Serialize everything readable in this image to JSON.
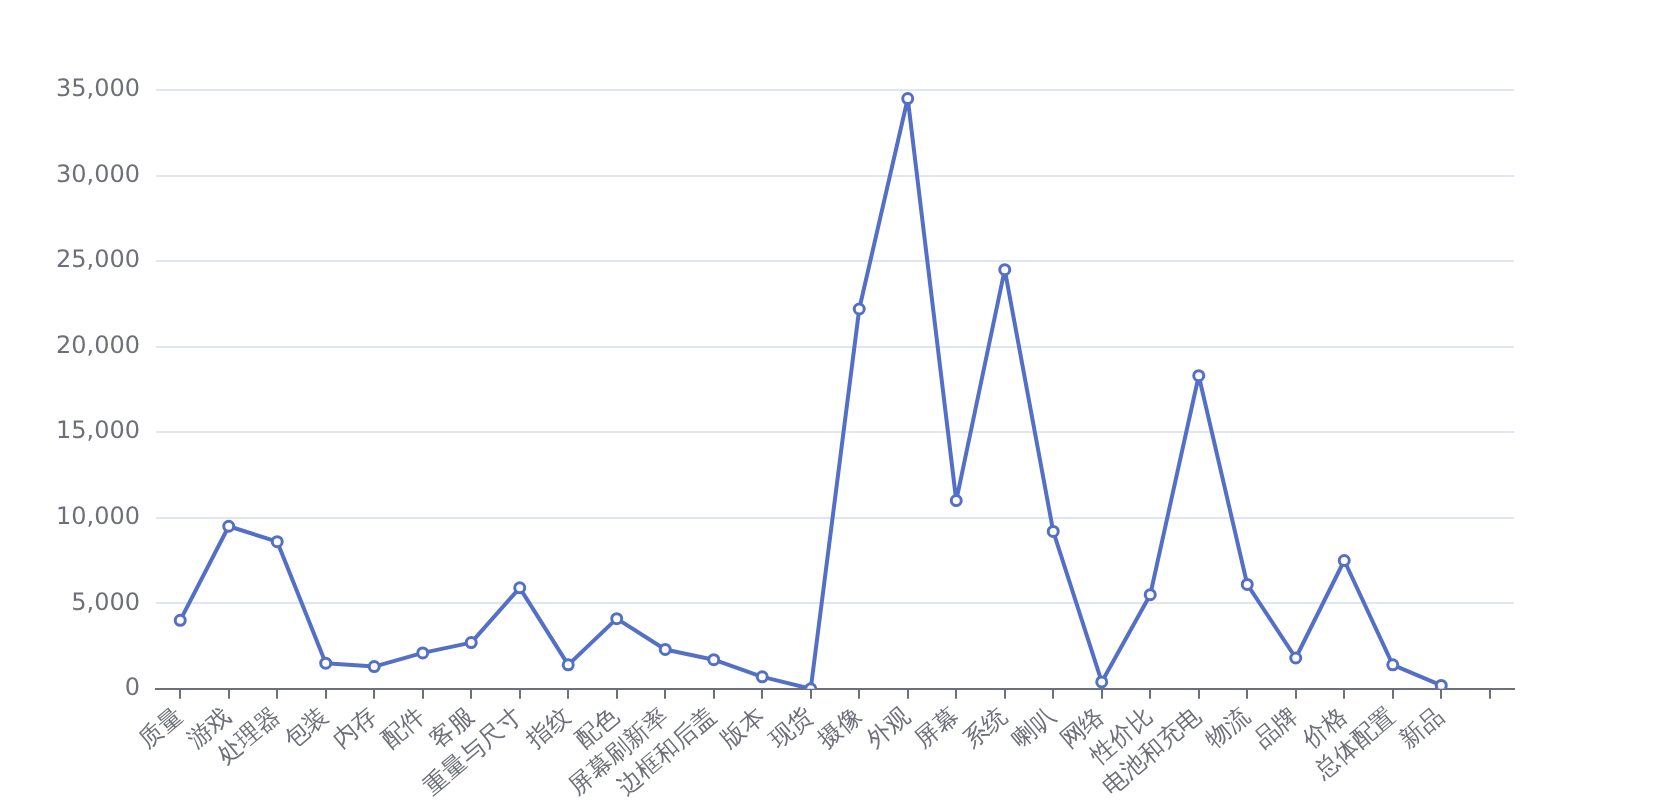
{
  "chart_data": {
    "type": "line",
    "categories": [
      "质量",
      "游戏",
      "处理器",
      "包装",
      "内存",
      "配件",
      "客服",
      "重量与尺寸",
      "指纹",
      "配色",
      "屏幕刷新率",
      "边框和后盖",
      "版本",
      "现货",
      "摄像",
      "外观",
      "屏幕",
      "系统",
      "喇叭",
      "网络",
      "性价比",
      "电池和充电",
      "物流",
      "品牌",
      "价格",
      "总体配置",
      "新品",
      null
    ],
    "series": [
      {
        "color": "#5470c6",
        "values": [
          4000,
          9500,
          8600,
          1500,
          1300,
          2100,
          2700,
          5900,
          1400,
          4100,
          2300,
          1700,
          700,
          0,
          22200,
          34500,
          11000,
          24500,
          9200,
          400,
          5500,
          18300,
          6100,
          1800,
          7500,
          1400,
          200,
          null
        ]
      }
    ],
    "ylim": [
      0,
      35000
    ],
    "yticks": [
      0,
      {
        "value": 5000,
        "label": "5,000"
      },
      {
        "value": 10000,
        "label": "10,000"
      },
      {
        "value": 15000,
        "label": "15,000"
      },
      {
        "value": 20000,
        "label": "20,000"
      },
      {
        "value": 25000,
        "label": "25,000"
      },
      {
        "value": 30000,
        "label": "30,000"
      },
      {
        "value": 35000,
        "label": "35,000"
      }
    ],
    "grid": "y",
    "legend": false,
    "marker": "circle",
    "line_style": "solid"
  }
}
